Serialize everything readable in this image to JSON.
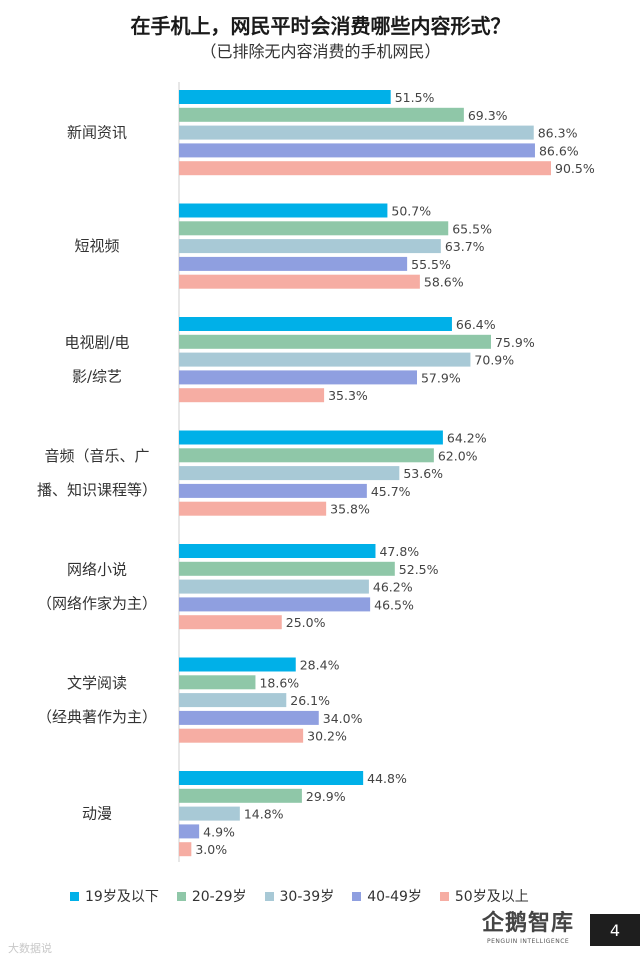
{
  "header": {
    "title": "在手机上，网民平时会消费哪些内容形式？",
    "subtitle": "（已排除无内容消费的手机网民）"
  },
  "chart_data": {
    "type": "bar",
    "orientation": "horizontal",
    "title": "在手机上，网民平时会消费哪些内容形式？",
    "subtitle": "（已排除无内容消费的手机网民）",
    "categories": [
      [
        "新闻资讯"
      ],
      [
        "短视频"
      ],
      [
        "电视剧/电",
        "影/综艺"
      ],
      [
        "音频（音乐、广",
        "播、知识课程等）"
      ],
      [
        "网络小说",
        "（网络作家为主）"
      ],
      [
        "文学阅读",
        "（经典著作为主）"
      ],
      [
        "动漫"
      ]
    ],
    "series": [
      {
        "name": "19岁及以下",
        "color": "#00b0e8",
        "values": [
          51.5,
          50.7,
          66.4,
          64.2,
          47.8,
          28.4,
          44.8
        ]
      },
      {
        "name": "20-29岁",
        "color": "#8fc7a8",
        "values": [
          69.3,
          65.5,
          75.9,
          62.0,
          52.5,
          18.6,
          29.9
        ]
      },
      {
        "name": "30-39岁",
        "color": "#a8c9d6",
        "values": [
          86.3,
          63.7,
          70.9,
          53.6,
          46.2,
          26.1,
          14.8
        ]
      },
      {
        "name": "40-49岁",
        "color": "#8f9fe0",
        "values": [
          86.6,
          55.5,
          57.9,
          45.7,
          46.5,
          34.0,
          4.9
        ]
      },
      {
        "name": "50岁及以上",
        "color": "#f6ada3",
        "values": [
          90.5,
          58.6,
          35.3,
          35.8,
          25.0,
          30.2,
          3.0
        ]
      }
    ],
    "value_suffix": "%",
    "xlim": [
      0,
      100
    ],
    "legend_position": "bottom",
    "grid": false
  },
  "brand": {
    "name": "企鹅智库",
    "subname": "PENGUIN INTELLIGENCE"
  },
  "page_number": "4",
  "watermark": "大数据说"
}
